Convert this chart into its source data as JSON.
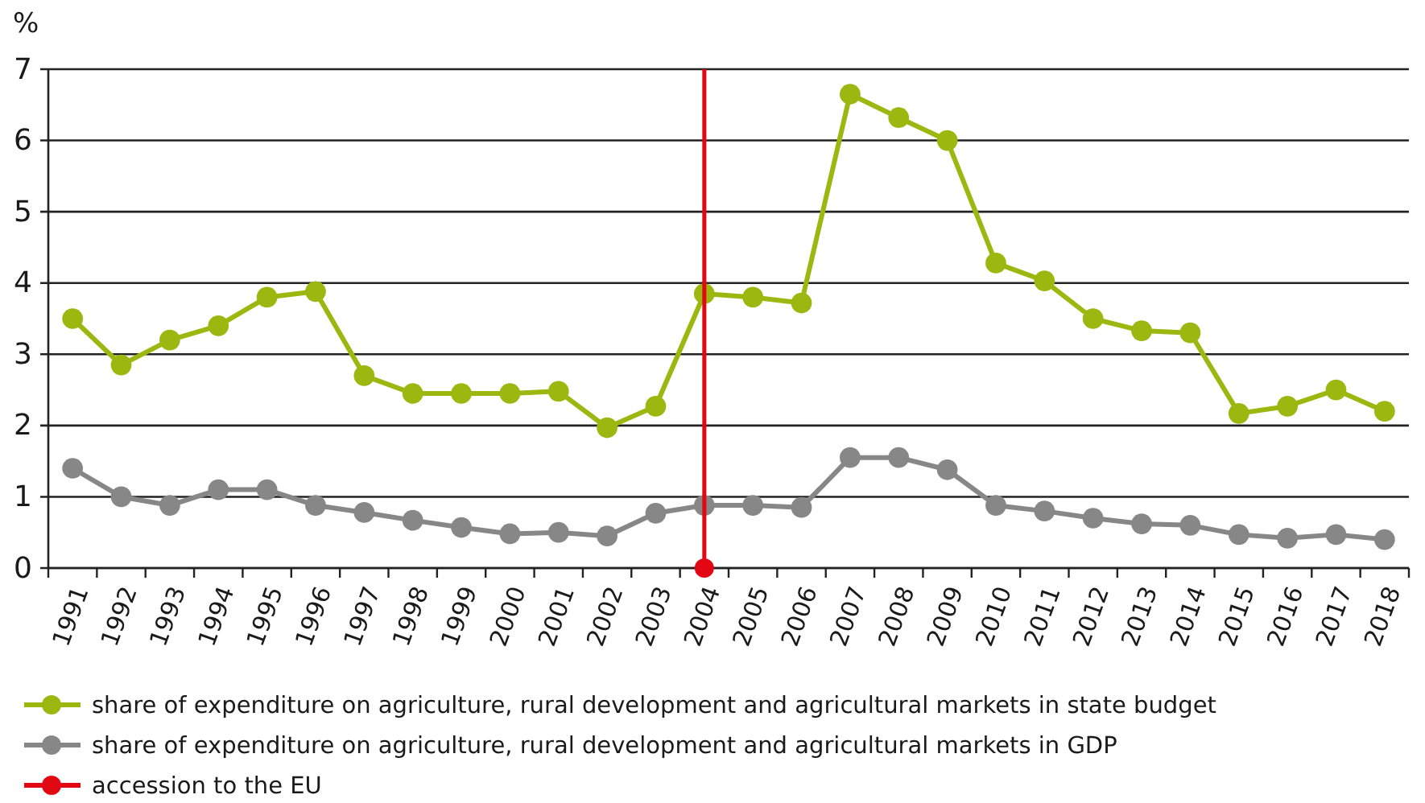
{
  "chart_data": {
    "type": "line",
    "ylabel": "%",
    "categories": [
      "1991",
      "1992",
      "1993",
      "1994",
      "1995",
      "1996",
      "1997",
      "1998",
      "1999",
      "2000",
      "2001",
      "2002",
      "2003",
      "2004",
      "2005",
      "2006",
      "2007",
      "2008",
      "2009",
      "2010",
      "2011",
      "2012",
      "2013",
      "2014",
      "2015",
      "2016",
      "2017",
      "2018"
    ],
    "series": [
      {
        "name": "share of expenditure on agriculture, rural development and agricultural markets in state budget",
        "color": "#9cb70f",
        "values": [
          3.5,
          2.85,
          3.2,
          3.4,
          3.8,
          3.88,
          2.7,
          2.45,
          2.45,
          2.45,
          2.48,
          1.97,
          2.27,
          3.85,
          3.8,
          3.72,
          6.65,
          6.32,
          6.0,
          4.28,
          4.03,
          3.5,
          3.33,
          3.3,
          2.17,
          2.27,
          2.5,
          2.2
        ]
      },
      {
        "name": "share of expenditure on agriculture, rural development and agricultural markets in GDP",
        "color": "#878787",
        "values": [
          1.4,
          1.0,
          0.88,
          1.1,
          1.1,
          0.88,
          0.78,
          0.67,
          0.57,
          0.48,
          0.5,
          0.45,
          0.77,
          0.88,
          0.88,
          0.85,
          1.55,
          1.55,
          1.38,
          0.88,
          0.8,
          0.7,
          0.62,
          0.6,
          0.47,
          0.42,
          0.47,
          0.4
        ]
      }
    ],
    "ref_lines": [
      {
        "axis": "x",
        "value": "2004",
        "label": "accession to the EU",
        "color": "#e30613"
      }
    ],
    "ylim": [
      0,
      7
    ],
    "yticks": [
      0,
      1,
      2,
      3,
      4,
      5,
      6,
      7
    ],
    "grid": "y",
    "legend": "bottom",
    "marker": "circle",
    "line_style": "solid"
  }
}
